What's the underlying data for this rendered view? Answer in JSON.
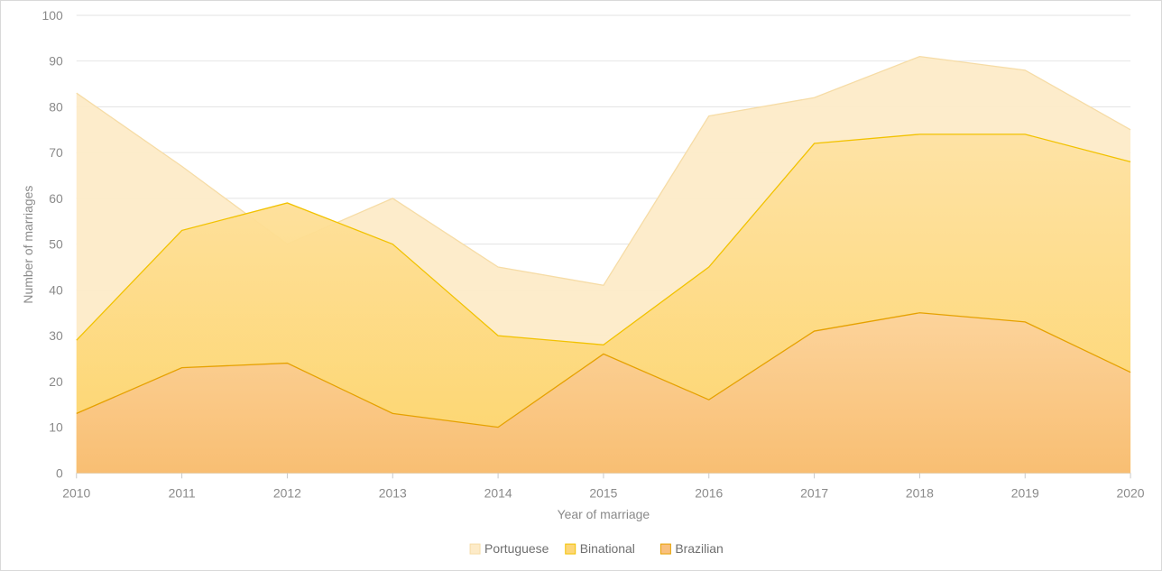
{
  "chart_data": {
    "type": "area",
    "stacked": false,
    "xlabel": "Year of marriage",
    "ylabel": "Number of marriages",
    "x": [
      2010,
      2011,
      2012,
      2013,
      2014,
      2015,
      2016,
      2017,
      2018,
      2019,
      2020
    ],
    "ylim": [
      0,
      100
    ],
    "yticks": [
      0,
      10,
      20,
      30,
      40,
      50,
      60,
      70,
      80,
      90,
      100
    ],
    "grid": true,
    "legend_position": "bottom",
    "series": [
      {
        "name": "Portuguese",
        "values": [
          83,
          67,
          50,
          60,
          45,
          41,
          78,
          82,
          91,
          88,
          75
        ],
        "color": "#fdebc8",
        "stroke": "#f6dca6"
      },
      {
        "name": "Binational",
        "values": [
          29,
          53,
          59,
          50,
          30,
          28,
          45,
          72,
          74,
          74,
          68
        ],
        "color": "#fdd677",
        "stroke": "#f2c200"
      },
      {
        "name": "Brazilian",
        "values": [
          13,
          23,
          24,
          13,
          10,
          26,
          16,
          31,
          35,
          33,
          22
        ],
        "color": "#f9c07e",
        "stroke": "#e6a100"
      }
    ]
  }
}
